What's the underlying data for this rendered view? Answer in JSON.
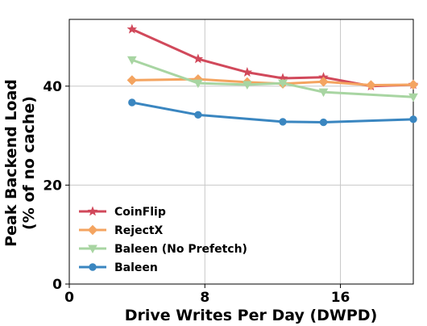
{
  "chart_data": {
    "type": "line",
    "title": "",
    "xlabel": "Drive Writes Per Day (DWPD)",
    "ylabel_lines": [
      "Peak Backend Load",
      "(% of no cache)"
    ],
    "xlim": [
      0,
      20.3
    ],
    "ylim": [
      0,
      53.5
    ],
    "xticks": [
      0,
      8,
      16
    ],
    "yticks": [
      0,
      20,
      40
    ],
    "grid": true,
    "legend_position": "lower-left",
    "series": [
      {
        "name": "CoinFlip",
        "color": "#d1495b",
        "marker": "star",
        "x": [
          3.7,
          7.6,
          10.5,
          12.6,
          15.0,
          17.8,
          20.3
        ],
        "y": [
          51.5,
          45.5,
          42.8,
          41.6,
          41.8,
          40.0,
          40.3
        ]
      },
      {
        "name": "RejectX",
        "color": "#f4a460",
        "marker": "diamond",
        "x": [
          3.7,
          7.6,
          10.5,
          12.6,
          15.0,
          17.8,
          20.3
        ],
        "y": [
          41.2,
          41.4,
          40.8,
          40.5,
          40.9,
          40.2,
          40.3
        ]
      },
      {
        "name": "Baleen (No Prefetch)",
        "color": "#a8d5a2",
        "marker": "triangle-down",
        "x": [
          3.7,
          7.6,
          10.5,
          12.6,
          15.0,
          20.3
        ],
        "y": [
          45.3,
          40.6,
          40.3,
          40.6,
          38.8,
          37.8
        ]
      },
      {
        "name": "Baleen",
        "color": "#3a86c0",
        "marker": "circle",
        "x": [
          3.7,
          7.6,
          12.6,
          15.0,
          20.3
        ],
        "y": [
          36.7,
          34.2,
          32.8,
          32.7,
          33.3
        ]
      }
    ]
  }
}
